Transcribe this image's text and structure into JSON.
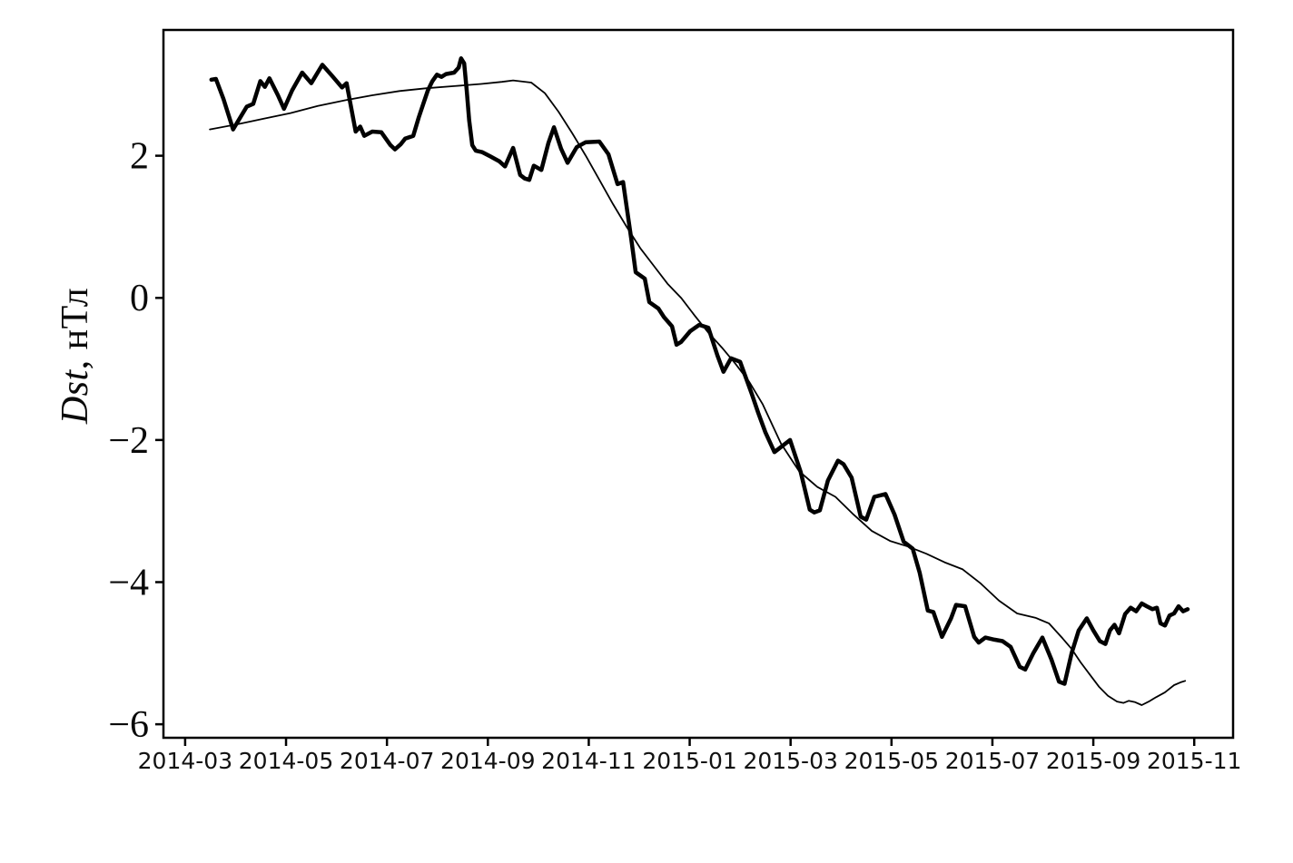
{
  "figure": {
    "background": "#ffffff",
    "ylabel_italic": "Dst",
    "ylabel_rest": ", нТл"
  },
  "chart_data": {
    "type": "line",
    "title": "",
    "xlabel": "",
    "ylabel": "Dst, нТл",
    "grid": false,
    "legend": null,
    "colors": {
      "lines": "#000000",
      "background": "#ffffff",
      "axis": "#000000"
    },
    "x_unit": "months since 2014-03 tick",
    "x_tick_labels": [
      "2014-03",
      "2014-05",
      "2014-07",
      "2014-09",
      "2014-11",
      "2015-01",
      "2015-03",
      "2015-05",
      "2015-07",
      "2015-09",
      "2015-11"
    ],
    "x_tick_months": [
      0,
      2,
      4,
      6,
      8,
      10,
      12,
      14,
      16,
      18,
      20
    ],
    "y_tick_labels": [
      "2",
      "0",
      "−2",
      "−4",
      "−6"
    ],
    "y_tick_values": [
      2,
      0,
      -2,
      -4,
      -6
    ],
    "x_range_months": [
      -0.43,
      20.77
    ],
    "y_range": [
      -6.19,
      3.77
    ],
    "series": [
      {
        "name": "dst-thick-jagged-line",
        "stroke_width": 4.5,
        "points": [
          [
            0.52,
            3.07
          ],
          [
            0.61,
            3.08
          ],
          [
            0.76,
            2.8
          ],
          [
            0.95,
            2.37
          ],
          [
            1.22,
            2.69
          ],
          [
            1.35,
            2.73
          ],
          [
            1.49,
            3.05
          ],
          [
            1.58,
            2.97
          ],
          [
            1.67,
            3.09
          ],
          [
            1.84,
            2.85
          ],
          [
            1.96,
            2.66
          ],
          [
            2.12,
            2.92
          ],
          [
            2.32,
            3.17
          ],
          [
            2.5,
            3.02
          ],
          [
            2.72,
            3.28
          ],
          [
            2.93,
            3.11
          ],
          [
            3.11,
            2.96
          ],
          [
            3.2,
            3.02
          ],
          [
            3.38,
            2.34
          ],
          [
            3.47,
            2.41
          ],
          [
            3.55,
            2.28
          ],
          [
            3.71,
            2.34
          ],
          [
            3.89,
            2.33
          ],
          [
            4.07,
            2.15
          ],
          [
            4.16,
            2.09
          ],
          [
            4.27,
            2.16
          ],
          [
            4.36,
            2.24
          ],
          [
            4.52,
            2.28
          ],
          [
            4.63,
            2.54
          ],
          [
            4.72,
            2.73
          ],
          [
            4.81,
            2.92
          ],
          [
            4.9,
            3.05
          ],
          [
            4.99,
            3.14
          ],
          [
            5.08,
            3.11
          ],
          [
            5.17,
            3.15
          ],
          [
            5.33,
            3.17
          ],
          [
            5.42,
            3.24
          ],
          [
            5.47,
            3.37
          ],
          [
            5.53,
            3.3
          ],
          [
            5.58,
            2.92
          ],
          [
            5.63,
            2.5
          ],
          [
            5.69,
            2.15
          ],
          [
            5.76,
            2.07
          ],
          [
            5.89,
            2.05
          ],
          [
            6.05,
            1.99
          ],
          [
            6.23,
            1.92
          ],
          [
            6.34,
            1.85
          ],
          [
            6.5,
            2.11
          ],
          [
            6.64,
            1.73
          ],
          [
            6.73,
            1.68
          ],
          [
            6.82,
            1.66
          ],
          [
            6.91,
            1.86
          ],
          [
            7.06,
            1.8
          ],
          [
            7.2,
            2.18
          ],
          [
            7.31,
            2.4
          ],
          [
            7.45,
            2.1
          ],
          [
            7.58,
            1.9
          ],
          [
            7.76,
            2.12
          ],
          [
            7.94,
            2.19
          ],
          [
            8.21,
            2.2
          ],
          [
            8.39,
            2.02
          ],
          [
            8.57,
            1.6
          ],
          [
            8.68,
            1.63
          ],
          [
            8.84,
            0.84
          ],
          [
            8.93,
            0.36
          ],
          [
            9.11,
            0.27
          ],
          [
            9.2,
            -0.06
          ],
          [
            9.38,
            -0.15
          ],
          [
            9.49,
            -0.27
          ],
          [
            9.65,
            -0.4
          ],
          [
            9.74,
            -0.66
          ],
          [
            9.83,
            -0.62
          ],
          [
            10.01,
            -0.47
          ],
          [
            10.19,
            -0.38
          ],
          [
            10.37,
            -0.42
          ],
          [
            10.55,
            -0.81
          ],
          [
            10.67,
            -1.04
          ],
          [
            10.82,
            -0.85
          ],
          [
            11.0,
            -0.9
          ],
          [
            11.23,
            -1.35
          ],
          [
            11.36,
            -1.62
          ],
          [
            11.5,
            -1.89
          ],
          [
            11.68,
            -2.17
          ],
          [
            11.77,
            -2.12
          ],
          [
            11.99,
            -2.0
          ],
          [
            12.2,
            -2.45
          ],
          [
            12.38,
            -2.98
          ],
          [
            12.47,
            -3.02
          ],
          [
            12.58,
            -2.99
          ],
          [
            12.74,
            -2.57
          ],
          [
            12.94,
            -2.29
          ],
          [
            13.05,
            -2.34
          ],
          [
            13.21,
            -2.53
          ],
          [
            13.39,
            -3.08
          ],
          [
            13.5,
            -3.12
          ],
          [
            13.66,
            -2.8
          ],
          [
            13.88,
            -2.76
          ],
          [
            14.06,
            -3.05
          ],
          [
            14.24,
            -3.43
          ],
          [
            14.42,
            -3.53
          ],
          [
            14.56,
            -3.87
          ],
          [
            14.72,
            -4.4
          ],
          [
            14.83,
            -4.42
          ],
          [
            15.0,
            -4.77
          ],
          [
            15.18,
            -4.51
          ],
          [
            15.28,
            -4.32
          ],
          [
            15.46,
            -4.34
          ],
          [
            15.64,
            -4.77
          ],
          [
            15.73,
            -4.85
          ],
          [
            15.86,
            -4.78
          ],
          [
            16.04,
            -4.81
          ],
          [
            16.2,
            -4.83
          ],
          [
            16.36,
            -4.91
          ],
          [
            16.54,
            -5.19
          ],
          [
            16.65,
            -5.23
          ],
          [
            16.81,
            -5.0
          ],
          [
            16.99,
            -4.78
          ],
          [
            17.17,
            -5.09
          ],
          [
            17.32,
            -5.4
          ],
          [
            17.43,
            -5.43
          ],
          [
            17.57,
            -5.0
          ],
          [
            17.71,
            -4.68
          ],
          [
            17.87,
            -4.51
          ],
          [
            18.0,
            -4.68
          ],
          [
            18.13,
            -4.83
          ],
          [
            18.24,
            -4.87
          ],
          [
            18.33,
            -4.68
          ],
          [
            18.42,
            -4.6
          ],
          [
            18.51,
            -4.72
          ],
          [
            18.63,
            -4.45
          ],
          [
            18.74,
            -4.36
          ],
          [
            18.85,
            -4.41
          ],
          [
            18.96,
            -4.3
          ],
          [
            19.06,
            -4.34
          ],
          [
            19.17,
            -4.38
          ],
          [
            19.26,
            -4.36
          ],
          [
            19.33,
            -4.58
          ],
          [
            19.42,
            -4.61
          ],
          [
            19.51,
            -4.47
          ],
          [
            19.6,
            -4.44
          ],
          [
            19.69,
            -4.34
          ],
          [
            19.78,
            -4.41
          ],
          [
            19.87,
            -4.38
          ]
        ]
      },
      {
        "name": "dst-thin-smooth-trend-line",
        "stroke_width": 1.8,
        "points": [
          [
            0.49,
            2.37
          ],
          [
            1.01,
            2.44
          ],
          [
            1.55,
            2.52
          ],
          [
            2.09,
            2.6
          ],
          [
            2.63,
            2.7
          ],
          [
            3.17,
            2.78
          ],
          [
            3.71,
            2.85
          ],
          [
            4.25,
            2.91
          ],
          [
            4.79,
            2.95
          ],
          [
            5.33,
            2.98
          ],
          [
            5.87,
            3.01
          ],
          [
            6.28,
            3.04
          ],
          [
            6.5,
            3.06
          ],
          [
            6.86,
            3.03
          ],
          [
            7.13,
            2.88
          ],
          [
            7.4,
            2.62
          ],
          [
            7.67,
            2.32
          ],
          [
            7.94,
            2.0
          ],
          [
            8.21,
            1.66
          ],
          [
            8.48,
            1.32
          ],
          [
            8.75,
            1.0
          ],
          [
            9.02,
            0.7
          ],
          [
            9.29,
            0.45
          ],
          [
            9.56,
            0.2
          ],
          [
            9.83,
            0.0
          ],
          [
            10.1,
            -0.25
          ],
          [
            10.37,
            -0.49
          ],
          [
            10.64,
            -0.7
          ],
          [
            10.91,
            -0.93
          ],
          [
            11.18,
            -1.18
          ],
          [
            11.45,
            -1.5
          ],
          [
            11.81,
            -2.05
          ],
          [
            12.17,
            -2.44
          ],
          [
            12.53,
            -2.66
          ],
          [
            12.89,
            -2.8
          ],
          [
            13.25,
            -3.05
          ],
          [
            13.61,
            -3.28
          ],
          [
            13.97,
            -3.42
          ],
          [
            14.33,
            -3.5
          ],
          [
            14.69,
            -3.6
          ],
          [
            15.05,
            -3.72
          ],
          [
            15.41,
            -3.82
          ],
          [
            15.77,
            -4.02
          ],
          [
            16.13,
            -4.26
          ],
          [
            16.49,
            -4.44
          ],
          [
            16.85,
            -4.5
          ],
          [
            17.12,
            -4.58
          ],
          [
            17.39,
            -4.79
          ],
          [
            17.57,
            -4.94
          ],
          [
            17.75,
            -5.13
          ],
          [
            17.93,
            -5.3
          ],
          [
            18.11,
            -5.47
          ],
          [
            18.29,
            -5.6
          ],
          [
            18.47,
            -5.68
          ],
          [
            18.6,
            -5.7
          ],
          [
            18.7,
            -5.67
          ],
          [
            18.83,
            -5.69
          ],
          [
            18.96,
            -5.73
          ],
          [
            19.1,
            -5.68
          ],
          [
            19.24,
            -5.62
          ],
          [
            19.42,
            -5.55
          ],
          [
            19.6,
            -5.45
          ],
          [
            19.73,
            -5.41
          ],
          [
            19.82,
            -5.39
          ]
        ]
      }
    ]
  }
}
